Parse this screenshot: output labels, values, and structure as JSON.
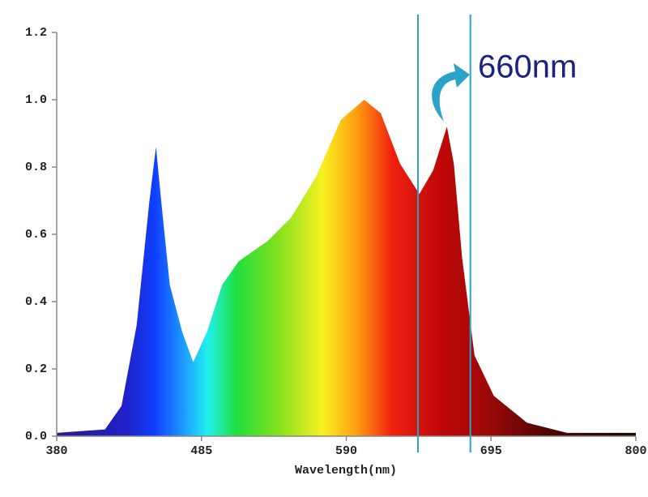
{
  "chart_data": {
    "type": "area",
    "x_label": "Wavelength(nm)",
    "annotation": "660nm",
    "x": [
      380,
      415,
      427,
      438,
      447,
      452,
      456,
      462,
      471,
      479,
      489,
      500,
      512,
      533,
      550,
      568,
      586,
      603,
      615,
      629,
      643,
      653,
      663,
      668,
      674,
      683,
      697,
      721,
      750,
      800
    ],
    "values": [
      0.01,
      0.02,
      0.09,
      0.33,
      0.69,
      0.86,
      0.69,
      0.45,
      0.31,
      0.22,
      0.31,
      0.45,
      0.52,
      0.58,
      0.65,
      0.77,
      0.94,
      1.0,
      0.96,
      0.81,
      0.72,
      0.79,
      0.92,
      0.81,
      0.53,
      0.24,
      0.12,
      0.04,
      0.01,
      0.01
    ],
    "reference_lines": [
      642,
      680
    ],
    "xlim": [
      380,
      800
    ],
    "xticks": [
      380,
      485,
      590,
      695,
      800
    ],
    "ylim": [
      0,
      1.2
    ],
    "yticks": [
      {
        "value": 0,
        "label": "0.0"
      },
      0.2,
      0.4,
      0.6,
      0.8,
      {
        "value": 1,
        "label": "1.0"
      },
      1.2
    ],
    "line_color": "#29a3c7",
    "annotation_color": "#1a237e"
  }
}
